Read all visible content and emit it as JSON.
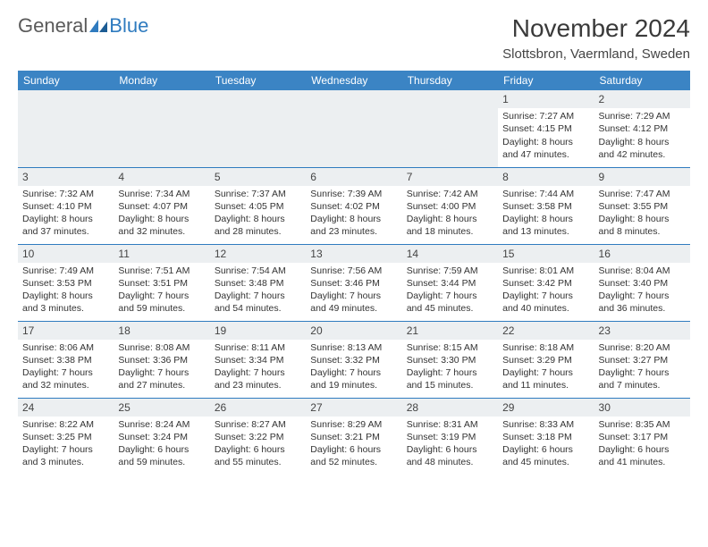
{
  "brand": {
    "part1": "General",
    "part2": "Blue"
  },
  "title": "November 2024",
  "location": "Slottsbron, Vaermland, Sweden",
  "colors": {
    "header_bg": "#3b84c4",
    "header_text": "#ffffff",
    "border": "#2f7bbf",
    "daynum_bg": "#eceff1",
    "text": "#333333",
    "brand_gray": "#5a5a5a",
    "brand_blue": "#2f7bbf"
  },
  "dayHeaders": [
    "Sunday",
    "Monday",
    "Tuesday",
    "Wednesday",
    "Thursday",
    "Friday",
    "Saturday"
  ],
  "weeks": [
    [
      null,
      null,
      null,
      null,
      null,
      {
        "n": "1",
        "sunrise": "7:27 AM",
        "sunset": "4:15 PM",
        "daylight": "8 hours and 47 minutes."
      },
      {
        "n": "2",
        "sunrise": "7:29 AM",
        "sunset": "4:12 PM",
        "daylight": "8 hours and 42 minutes."
      }
    ],
    [
      {
        "n": "3",
        "sunrise": "7:32 AM",
        "sunset": "4:10 PM",
        "daylight": "8 hours and 37 minutes."
      },
      {
        "n": "4",
        "sunrise": "7:34 AM",
        "sunset": "4:07 PM",
        "daylight": "8 hours and 32 minutes."
      },
      {
        "n": "5",
        "sunrise": "7:37 AM",
        "sunset": "4:05 PM",
        "daylight": "8 hours and 28 minutes."
      },
      {
        "n": "6",
        "sunrise": "7:39 AM",
        "sunset": "4:02 PM",
        "daylight": "8 hours and 23 minutes."
      },
      {
        "n": "7",
        "sunrise": "7:42 AM",
        "sunset": "4:00 PM",
        "daylight": "8 hours and 18 minutes."
      },
      {
        "n": "8",
        "sunrise": "7:44 AM",
        "sunset": "3:58 PM",
        "daylight": "8 hours and 13 minutes."
      },
      {
        "n": "9",
        "sunrise": "7:47 AM",
        "sunset": "3:55 PM",
        "daylight": "8 hours and 8 minutes."
      }
    ],
    [
      {
        "n": "10",
        "sunrise": "7:49 AM",
        "sunset": "3:53 PM",
        "daylight": "8 hours and 3 minutes."
      },
      {
        "n": "11",
        "sunrise": "7:51 AM",
        "sunset": "3:51 PM",
        "daylight": "7 hours and 59 minutes."
      },
      {
        "n": "12",
        "sunrise": "7:54 AM",
        "sunset": "3:48 PM",
        "daylight": "7 hours and 54 minutes."
      },
      {
        "n": "13",
        "sunrise": "7:56 AM",
        "sunset": "3:46 PM",
        "daylight": "7 hours and 49 minutes."
      },
      {
        "n": "14",
        "sunrise": "7:59 AM",
        "sunset": "3:44 PM",
        "daylight": "7 hours and 45 minutes."
      },
      {
        "n": "15",
        "sunrise": "8:01 AM",
        "sunset": "3:42 PM",
        "daylight": "7 hours and 40 minutes."
      },
      {
        "n": "16",
        "sunrise": "8:04 AM",
        "sunset": "3:40 PM",
        "daylight": "7 hours and 36 minutes."
      }
    ],
    [
      {
        "n": "17",
        "sunrise": "8:06 AM",
        "sunset": "3:38 PM",
        "daylight": "7 hours and 32 minutes."
      },
      {
        "n": "18",
        "sunrise": "8:08 AM",
        "sunset": "3:36 PM",
        "daylight": "7 hours and 27 minutes."
      },
      {
        "n": "19",
        "sunrise": "8:11 AM",
        "sunset": "3:34 PM",
        "daylight": "7 hours and 23 minutes."
      },
      {
        "n": "20",
        "sunrise": "8:13 AM",
        "sunset": "3:32 PM",
        "daylight": "7 hours and 19 minutes."
      },
      {
        "n": "21",
        "sunrise": "8:15 AM",
        "sunset": "3:30 PM",
        "daylight": "7 hours and 15 minutes."
      },
      {
        "n": "22",
        "sunrise": "8:18 AM",
        "sunset": "3:29 PM",
        "daylight": "7 hours and 11 minutes."
      },
      {
        "n": "23",
        "sunrise": "8:20 AM",
        "sunset": "3:27 PM",
        "daylight": "7 hours and 7 minutes."
      }
    ],
    [
      {
        "n": "24",
        "sunrise": "8:22 AM",
        "sunset": "3:25 PM",
        "daylight": "7 hours and 3 minutes."
      },
      {
        "n": "25",
        "sunrise": "8:24 AM",
        "sunset": "3:24 PM",
        "daylight": "6 hours and 59 minutes."
      },
      {
        "n": "26",
        "sunrise": "8:27 AM",
        "sunset": "3:22 PM",
        "daylight": "6 hours and 55 minutes."
      },
      {
        "n": "27",
        "sunrise": "8:29 AM",
        "sunset": "3:21 PM",
        "daylight": "6 hours and 52 minutes."
      },
      {
        "n": "28",
        "sunrise": "8:31 AM",
        "sunset": "3:19 PM",
        "daylight": "6 hours and 48 minutes."
      },
      {
        "n": "29",
        "sunrise": "8:33 AM",
        "sunset": "3:18 PM",
        "daylight": "6 hours and 45 minutes."
      },
      {
        "n": "30",
        "sunrise": "8:35 AM",
        "sunset": "3:17 PM",
        "daylight": "6 hours and 41 minutes."
      }
    ]
  ]
}
